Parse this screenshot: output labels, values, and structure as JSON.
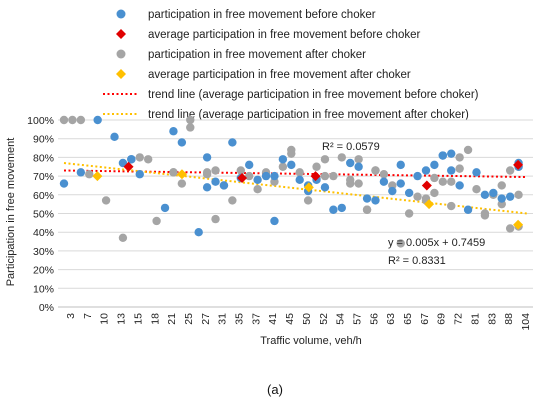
{
  "colors": {
    "before": "#4a90d0",
    "before_avg": "#e00000",
    "after": "#a5a5a5",
    "after_avg": "#ffc000",
    "trend_before": "#ff0000",
    "trend_after": "#ffc000",
    "grid": "#d9d9d9",
    "r2_before_text": "#ff0000"
  },
  "panel_label": "(a)",
  "chart_data": {
    "type": "scatter",
    "xlabel": "Traffic volume, veh/h",
    "ylabel": "Participation in free movement",
    "ylim": [
      0,
      100
    ],
    "y_ticks": [
      "0%",
      "10%",
      "20%",
      "30%",
      "40%",
      "50%",
      "60%",
      "70%",
      "80%",
      "90%",
      "100%"
    ],
    "x_tick_labels": [
      "3",
      "7",
      "10",
      "13",
      "15",
      "18",
      "21",
      "25",
      "27",
      "31",
      "35",
      "37",
      "41",
      "45",
      "50",
      "52",
      "54",
      "57",
      "56",
      "63",
      "65",
      "67",
      "69",
      "72",
      "81",
      "83",
      "88",
      "104"
    ],
    "legend": [
      {
        "key": "before",
        "label": "participation in free movement before choker",
        "marker": "circle"
      },
      {
        "key": "before_avg",
        "label": "average participation in free movement before choker",
        "marker": "diamond"
      },
      {
        "key": "after",
        "label": "participation in free movement after choker",
        "marker": "circle"
      },
      {
        "key": "after_avg",
        "label": "average participation in free movement after choker",
        "marker": "diamond"
      },
      {
        "key": "trend_before",
        "label": "trend line (average participation in free movement before choker)",
        "marker": "dotted-line"
      },
      {
        "key": "trend_after",
        "label": "trend line (average participation in free movement after choker)",
        "marker": "dotted-line"
      }
    ],
    "annotations": {
      "r2_before": "R² = 0.0579",
      "equation_after": "y = 0.005x + 0.7459",
      "r2_after": "R² = 0.8331"
    },
    "series": [
      {
        "key": "after",
        "x": [
          1,
          2,
          3,
          4,
          6,
          8,
          10,
          11,
          12,
          14,
          14,
          15,
          16,
          16,
          18,
          18,
          19,
          19,
          20,
          21,
          22,
          23,
          24,
          25,
          26,
          27,
          28,
          28,
          29,
          30,
          31,
          31,
          32,
          32,
          33,
          34,
          35,
          35,
          36,
          36,
          37,
          37,
          38,
          38,
          39,
          40,
          41,
          42,
          43,
          44,
          44,
          45,
          45,
          46,
          47,
          47,
          48,
          48,
          49,
          50,
          51,
          51,
          52,
          53,
          53,
          54,
          54,
          55,
          55,
          55
        ],
        "y": [
          100,
          100,
          100,
          71,
          57,
          37,
          80,
          79,
          46,
          72,
          72,
          66,
          100,
          96,
          72,
          71,
          47,
          73,
          65,
          57,
          73,
          70,
          63,
          72,
          67,
          75,
          82,
          84,
          72,
          57,
          75,
          69,
          70,
          79,
          70,
          80,
          66,
          68,
          79,
          66,
          52,
          52,
          73,
          73,
          71,
          65,
          34,
          50,
          59,
          58,
          57,
          69,
          61,
          67,
          67,
          54,
          80,
          74,
          84,
          63,
          50,
          49,
          60,
          55,
          65,
          42,
          73,
          60,
          75,
          43
        ]
      },
      {
        "key": "before",
        "x": [
          1,
          3,
          5,
          7,
          8,
          9,
          9,
          10,
          13,
          14,
          15,
          17,
          18,
          18,
          19,
          20,
          21,
          22,
          23,
          24,
          25,
          26,
          26,
          27,
          28,
          29,
          30,
          30,
          31,
          32,
          33,
          34,
          35,
          36,
          37,
          38,
          39,
          40,
          41,
          41,
          42,
          43,
          44,
          45,
          46,
          46,
          47,
          47,
          48,
          49,
          50,
          51,
          52,
          53,
          54,
          55,
          55
        ],
        "y": [
          66,
          72,
          100,
          91,
          77,
          79,
          79,
          71,
          53,
          94,
          88,
          40,
          80,
          64,
          67,
          65,
          88,
          69,
          76,
          68,
          70,
          70,
          46,
          79,
          76,
          68,
          65,
          62,
          68,
          64,
          52,
          53,
          77,
          75,
          58,
          57,
          67,
          62,
          66,
          76,
          61,
          70,
          73,
          76,
          81,
          81,
          82,
          73,
          65,
          52,
          72,
          60,
          61,
          58,
          59,
          77,
          75
        ]
      },
      {
        "key": "before_avg",
        "x": [
          15.5,
          41,
          57.5,
          82.5,
          103
        ],
        "y": [
          75,
          69,
          70,
          65,
          76
        ]
      },
      {
        "key": "after_avg",
        "x": [
          8.5,
          27.5,
          56,
          83,
          103
        ],
        "y": [
          70,
          71,
          64,
          55,
          44
        ]
      }
    ],
    "trend_lines": [
      {
        "key": "trend_before",
        "r2": 0.0579
      },
      {
        "key": "trend_after",
        "slope": 0.005,
        "intercept": 0.7459,
        "r2": 0.8331
      }
    ]
  }
}
